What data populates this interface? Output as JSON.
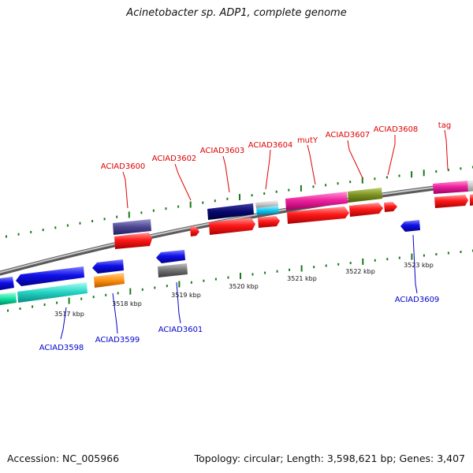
{
  "title": "Acinetobacter sp. ADP1, complete genome",
  "footer": {
    "accession": "Accession: NC_005966",
    "summary": "Topology: circular; Length: 3,598,621 bp; Genes: 3,407"
  },
  "ruler_labels": [
    "3517 kbp",
    "3518 kbp",
    "3519 kbp",
    "3520 kbp",
    "3521 kbp",
    "3522 kbp",
    "3523 kbp"
  ],
  "forward_gene_labels": [
    "ACIAD3600",
    "ACIAD3602",
    "ACIAD3603",
    "ACIAD3604",
    "mutY",
    "ACIAD3607",
    "ACIAD3608",
    "tag"
  ],
  "reverse_gene_labels": [
    "ACIAD3598",
    "ACIAD3599",
    "ACIAD3601",
    "ACIAD3609"
  ],
  "colors": {
    "forward_label": "#e00000",
    "reverse_label": "#0000cc",
    "cds": "#ff0000",
    "backbone": "#888888",
    "tick": "#1a7a1a"
  }
}
